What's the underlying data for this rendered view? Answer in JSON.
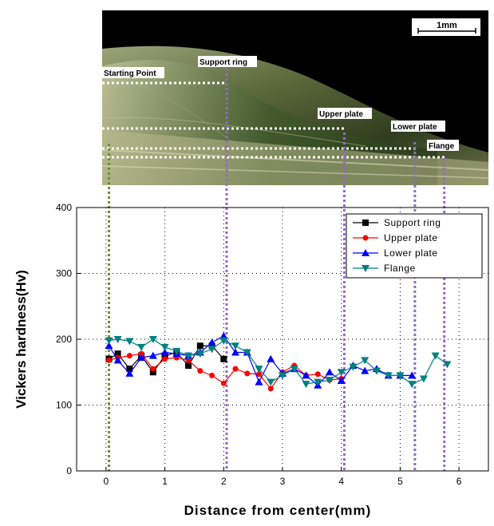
{
  "micrograph": {
    "scale_bar_label": "1mm",
    "labels": [
      "Starting Point",
      "Support ring",
      "Upper plate",
      "Lower plate",
      "Flange"
    ]
  },
  "chart_data": {
    "type": "line",
    "xlabel": "Distance from center(mm)",
    "ylabel": "Vickers hardness(Hv)",
    "xlim": [
      -0.5,
      6.5
    ],
    "ylim": [
      0,
      400
    ],
    "xticks": [
      0,
      1,
      2,
      3,
      4,
      5,
      6
    ],
    "yticks": [
      0,
      100,
      200,
      300,
      400
    ],
    "grid": "dotted",
    "legend_position": "top-right",
    "marker_lines_x": [
      0.05,
      2.05,
      4.05,
      5.25,
      5.75
    ],
    "series": [
      {
        "name": "Support ring",
        "color": "#000000",
        "marker": "square",
        "x": [
          0.05,
          0.2,
          0.4,
          0.6,
          0.8,
          1.0,
          1.2,
          1.4,
          1.6,
          1.8,
          2.0
        ],
        "y": [
          170,
          178,
          155,
          175,
          150,
          175,
          180,
          160,
          190,
          190,
          170
        ]
      },
      {
        "name": "Upper plate",
        "color": "#ff0000",
        "marker": "circle",
        "x": [
          0.05,
          0.2,
          0.4,
          0.6,
          0.8,
          1.0,
          1.2,
          1.4,
          1.6,
          1.8,
          2.0,
          2.2,
          2.4,
          2.6,
          2.8,
          3.0,
          3.2,
          3.4,
          3.6,
          3.8,
          4.0
        ],
        "y": [
          168,
          172,
          175,
          178,
          155,
          170,
          172,
          168,
          152,
          145,
          133,
          155,
          148,
          147,
          125,
          150,
          160,
          145,
          147,
          138,
          140
        ]
      },
      {
        "name": "Lower plate",
        "color": "#0000ff",
        "marker": "triangle-up",
        "x": [
          0.05,
          0.2,
          0.4,
          0.6,
          0.8,
          1.0,
          1.2,
          1.4,
          1.6,
          1.8,
          2.0,
          2.2,
          2.4,
          2.6,
          2.8,
          3.0,
          3.2,
          3.4,
          3.6,
          3.8,
          4.0,
          4.2,
          4.4,
          4.6,
          4.8,
          5.0,
          5.2
        ],
        "y": [
          190,
          168,
          148,
          172,
          175,
          180,
          178,
          175,
          180,
          195,
          205,
          180,
          180,
          135,
          170,
          148,
          155,
          145,
          130,
          150,
          137,
          160,
          152,
          155,
          145,
          145,
          145
        ]
      },
      {
        "name": "Flange",
        "color": "#008080",
        "marker": "triangle-down",
        "x": [
          0.05,
          0.2,
          0.4,
          0.6,
          0.8,
          1.0,
          1.2,
          1.4,
          1.6,
          1.8,
          2.0,
          2.2,
          2.4,
          2.6,
          2.8,
          3.0,
          3.2,
          3.4,
          3.6,
          3.8,
          4.0,
          4.2,
          4.4,
          4.6,
          4.8,
          5.0,
          5.2,
          5.4,
          5.6,
          5.8
        ],
        "y": [
          198,
          200,
          197,
          188,
          200,
          188,
          182,
          175,
          178,
          185,
          198,
          190,
          180,
          155,
          135,
          145,
          155,
          132,
          135,
          138,
          150,
          158,
          168,
          152,
          145,
          145,
          132,
          140,
          175,
          162
        ]
      }
    ]
  }
}
